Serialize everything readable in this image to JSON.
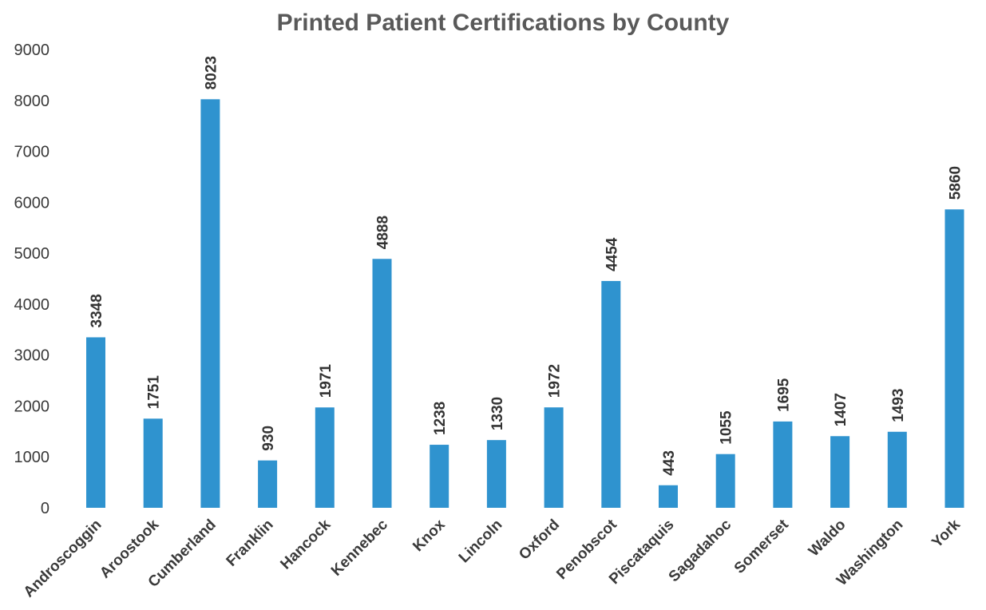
{
  "chart_data": {
    "type": "bar",
    "title": "Printed Patient Certifications by County",
    "xlabel": "",
    "ylabel": "",
    "categories": [
      "Androscoggin",
      "Aroostook",
      "Cumberland",
      "Franklin",
      "Hancock",
      "Kennebec",
      "Knox",
      "Lincoln",
      "Oxford",
      "Penobscot",
      "Piscataquis",
      "Sagadahoc",
      "Somerset",
      "Waldo",
      "Washington",
      "York"
    ],
    "values": [
      3348,
      1751,
      8023,
      930,
      1971,
      4888,
      1238,
      1330,
      1972,
      4454,
      443,
      1055,
      1695,
      1407,
      1493,
      5860
    ],
    "data_labels": [
      "3348",
      "1751",
      "8023",
      "930",
      "1971",
      "4888",
      "1238",
      "1330",
      "1972",
      "4454",
      "443",
      "1055",
      "1695",
      "1407",
      "1493",
      "5860"
    ],
    "ylim": [
      0,
      9000
    ],
    "yticks": [
      "0",
      "1000",
      "2000",
      "3000",
      "4000",
      "5000",
      "6000",
      "7000",
      "8000",
      "9000"
    ],
    "ytick_values": [
      0,
      1000,
      2000,
      3000,
      4000,
      5000,
      6000,
      7000,
      8000,
      9000
    ],
    "grid": false,
    "legend": "none",
    "bar_color": "#2f93cf",
    "title_color": "#595959"
  }
}
